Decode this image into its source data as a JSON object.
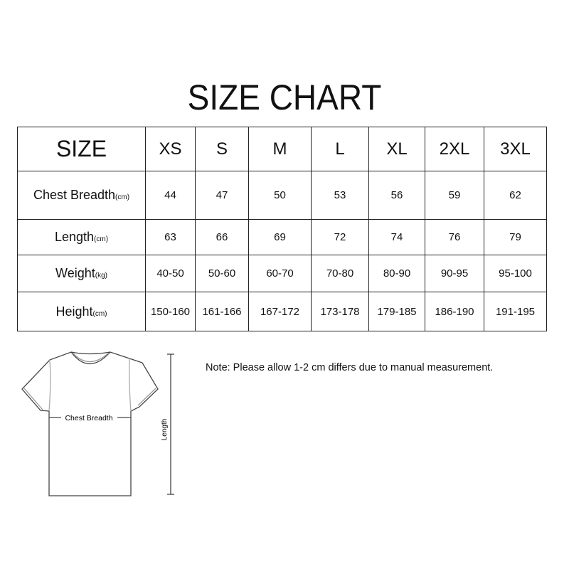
{
  "title": "SIZE CHART",
  "table": {
    "header_label": "SIZE",
    "sizes": [
      "XS",
      "S",
      "M",
      "L",
      "XL",
      "2XL",
      "3XL"
    ],
    "rows": [
      {
        "label": "Chest Breadth",
        "unit": "(cm)",
        "values": [
          "44",
          "47",
          "50",
          "53",
          "56",
          "59",
          "62"
        ]
      },
      {
        "label": "Length",
        "unit": "(cm)",
        "values": [
          "63",
          "66",
          "69",
          "72",
          "74",
          "76",
          "79"
        ]
      },
      {
        "label": "Weight",
        "unit": "(kg)",
        "values": [
          "40-50",
          "50-60",
          "60-70",
          "70-80",
          "80-90",
          "90-95",
          "95-100"
        ]
      },
      {
        "label": "Height",
        "unit": "(cm)",
        "values": [
          "150-160",
          "161-166",
          "167-172",
          "173-178",
          "179-185",
          "186-190",
          "191-195"
        ]
      }
    ]
  },
  "diagram": {
    "chest_label": "Chest Breadth",
    "length_label": "Length"
  },
  "note": "Note: Please allow 1-2 cm differs due to manual measurement."
}
